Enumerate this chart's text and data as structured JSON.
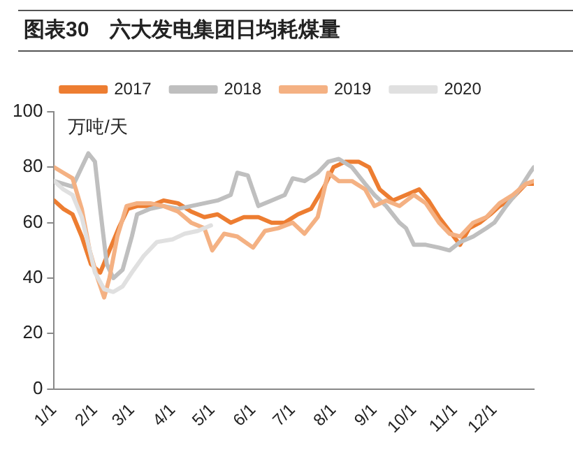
{
  "chart_data": {
    "type": "line",
    "title": "图表30　六大发电集团日均耗煤量",
    "ylabel": "万吨/天",
    "xlim": [
      "--01-01",
      "--12-31"
    ],
    "xticks": [
      {
        "value": "--01-01",
        "label": "1/1"
      },
      {
        "value": "--02-01",
        "label": "2/1"
      },
      {
        "value": "--03-01",
        "label": "3/1"
      },
      {
        "value": "--04-01",
        "label": "4/1"
      },
      {
        "value": "--05-01",
        "label": "5/1"
      },
      {
        "value": "--06-01",
        "label": "6/1"
      },
      {
        "value": "--07-01",
        "label": "7/1"
      },
      {
        "value": "--08-01",
        "label": "8/1"
      },
      {
        "value": "--09-01",
        "label": "9/1"
      },
      {
        "value": "--10-01",
        "label": "10/1"
      },
      {
        "value": "--11-01",
        "label": "11/1"
      },
      {
        "value": "--12-01",
        "label": "12/1"
      }
    ],
    "ylim": [
      0,
      100
    ],
    "yticks": [
      0,
      20,
      40,
      60,
      80,
      100
    ],
    "grid": false,
    "legend": "top",
    "marker": "none",
    "line_style": "solid",
    "series": [
      {
        "name": "2017",
        "color": "#ed7d31",
        "x": [
          "--01-01",
          "--01-08",
          "--01-15",
          "--01-22",
          "--01-29",
          "--02-05",
          "--02-12",
          "--02-19",
          "--02-26",
          "--03-05",
          "--03-15",
          "--03-25",
          "--04-05",
          "--04-15",
          "--04-25",
          "--05-05",
          "--05-15",
          "--05-25",
          "--06-05",
          "--06-15",
          "--06-25",
          "--07-05",
          "--07-15",
          "--07-25",
          "--08-01",
          "--08-10",
          "--08-20",
          "--08-28",
          "--09-05",
          "--09-15",
          "--09-25",
          "--10-05",
          "--10-12",
          "--10-20",
          "--10-28",
          "--11-05",
          "--11-12",
          "--11-20",
          "--11-28",
          "--12-05",
          "--12-15",
          "--12-25",
          "--12-31"
        ],
        "values": [
          68,
          65,
          63,
          55,
          45,
          42,
          50,
          58,
          65,
          66,
          66,
          68,
          67,
          64,
          62,
          63,
          60,
          62,
          62,
          60,
          60,
          63,
          65,
          73,
          80,
          82,
          82,
          80,
          72,
          68,
          70,
          72,
          68,
          62,
          57,
          52,
          58,
          60,
          63,
          66,
          69,
          74,
          74
        ]
      },
      {
        "name": "2018",
        "color": "#bfbfbf",
        "x": [
          "--01-01",
          "--01-08",
          "--01-15",
          "--01-22",
          "--01-27",
          "--02-01",
          "--02-05",
          "--02-10",
          "--02-15",
          "--02-22",
          "--03-01",
          "--03-05",
          "--03-15",
          "--03-25",
          "--04-05",
          "--04-15",
          "--04-25",
          "--05-05",
          "--05-15",
          "--05-20",
          "--05-28",
          "--06-05",
          "--06-15",
          "--06-25",
          "--07-01",
          "--07-10",
          "--07-20",
          "--07-28",
          "--08-05",
          "--08-15",
          "--08-25",
          "--09-01",
          "--09-10",
          "--09-20",
          "--09-25",
          "--10-01",
          "--10-10",
          "--10-20",
          "--10-28",
          "--11-05",
          "--11-15",
          "--11-25",
          "--12-01",
          "--12-10",
          "--12-20",
          "--12-28",
          "--12-31"
        ],
        "values": [
          75,
          74,
          73,
          80,
          85,
          82,
          65,
          45,
          40,
          43,
          55,
          63,
          65,
          66,
          65,
          66,
          67,
          68,
          70,
          78,
          77,
          66,
          68,
          70,
          76,
          75,
          78,
          82,
          83,
          80,
          74,
          70,
          66,
          60,
          58,
          52,
          52,
          51,
          50,
          53,
          55,
          58,
          60,
          66,
          72,
          78,
          80
        ]
      },
      {
        "name": "2019",
        "color": "#f4b183",
        "x": [
          "--01-01",
          "--01-08",
          "--01-15",
          "--01-22",
          "--01-28",
          "--02-03",
          "--02-08",
          "--02-12",
          "--02-18",
          "--02-25",
          "--03-05",
          "--03-15",
          "--03-25",
          "--04-05",
          "--04-15",
          "--04-25",
          "--05-01",
          "--05-10",
          "--05-20",
          "--06-01",
          "--06-10",
          "--06-20",
          "--07-01",
          "--07-10",
          "--07-20",
          "--07-28",
          "--08-05",
          "--08-15",
          "--08-25",
          "--09-01",
          "--09-10",
          "--09-20",
          "--10-01",
          "--10-10",
          "--10-20",
          "--10-28",
          "--11-05",
          "--11-15",
          "--11-25",
          "--12-05",
          "--12-15",
          "--12-25",
          "--12-31"
        ],
        "values": [
          80,
          78,
          76,
          65,
          50,
          40,
          33,
          40,
          55,
          66,
          67,
          67,
          66,
          64,
          60,
          58,
          50,
          56,
          55,
          51,
          57,
          58,
          60,
          56,
          62,
          78,
          75,
          75,
          72,
          66,
          68,
          66,
          70,
          67,
          60,
          56,
          55,
          60,
          62,
          67,
          70,
          74,
          75
        ]
      },
      {
        "name": "2020",
        "color": "#e0e0e0",
        "x": [
          "--01-01",
          "--01-08",
          "--01-15",
          "--01-22",
          "--02-01",
          "--02-08",
          "--02-15",
          "--02-22",
          "--03-01",
          "--03-10",
          "--03-20",
          "--04-01",
          "--04-10",
          "--04-20",
          "--04-30"
        ],
        "values": [
          75,
          72,
          70,
          62,
          42,
          36,
          35,
          37,
          42,
          48,
          53,
          54,
          56,
          57,
          59
        ]
      }
    ]
  }
}
